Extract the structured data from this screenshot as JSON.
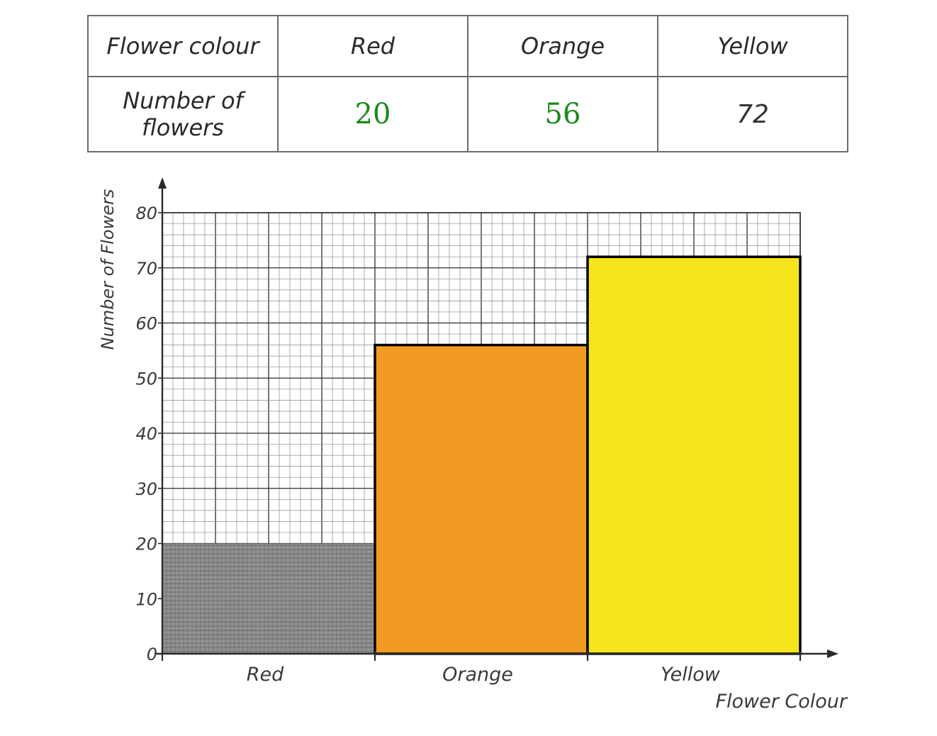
{
  "table": {
    "row_headers": [
      "Flower colour",
      "Number of flowers"
    ],
    "columns": [
      {
        "colour": "Red",
        "count": "20"
      },
      {
        "colour": "Orange",
        "count": "56"
      },
      {
        "colour": "Yellow",
        "count": "72"
      }
    ]
  },
  "chart_data": {
    "type": "bar",
    "categories": [
      "Red",
      "Orange",
      "Yellow"
    ],
    "values": [
      20,
      56,
      72
    ],
    "xlabel": "Flower Colour",
    "ylabel": "Number of Flowers",
    "ylim": [
      0,
      80
    ],
    "yticks": [
      0,
      10,
      20,
      30,
      40,
      50,
      60,
      70,
      80
    ],
    "grid": true,
    "bar_colors": [
      "#7a7a7a",
      "#f29b22",
      "#f6e51b"
    ]
  }
}
